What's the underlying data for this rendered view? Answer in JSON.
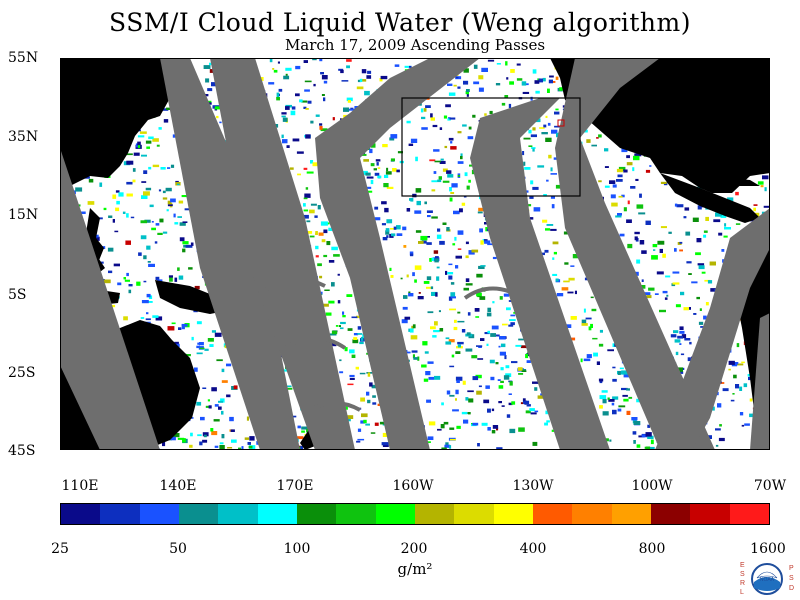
{
  "header": {
    "title": "SSM/I Cloud Liquid Water (Weng algorithm)",
    "subtitle": "March 17, 2009  Ascending Passes"
  },
  "map": {
    "lat_labels": [
      "55N",
      "35N",
      "15N",
      "5S",
      "25S",
      "45S"
    ],
    "lon_labels": [
      "110E",
      "140E",
      "170E",
      "160W",
      "130W",
      "100W",
      "70W"
    ],
    "colors": {
      "gap": "#6e6e6e",
      "land": "#000000",
      "ocean": "#ffffff"
    }
  },
  "colorbar": {
    "labels": [
      "25",
      "50",
      "100",
      "200",
      "400",
      "800",
      "1600"
    ],
    "units": "g/m²",
    "colors": [
      "#0a0a8a",
      "#0d2fbf",
      "#1a52ff",
      "#0a8f8f",
      "#00c0c8",
      "#00ffff",
      "#0a8f0a",
      "#0fc30f",
      "#00ff00",
      "#b4b400",
      "#dcdc00",
      "#ffff00",
      "#ff5a00",
      "#ff8000",
      "#ffa000",
      "#8c0000",
      "#c80000",
      "#ff1a1a"
    ]
  },
  "logo": {
    "left_letters": "ESRL",
    "right_letters": "PSD",
    "center": "NOAA"
  }
}
